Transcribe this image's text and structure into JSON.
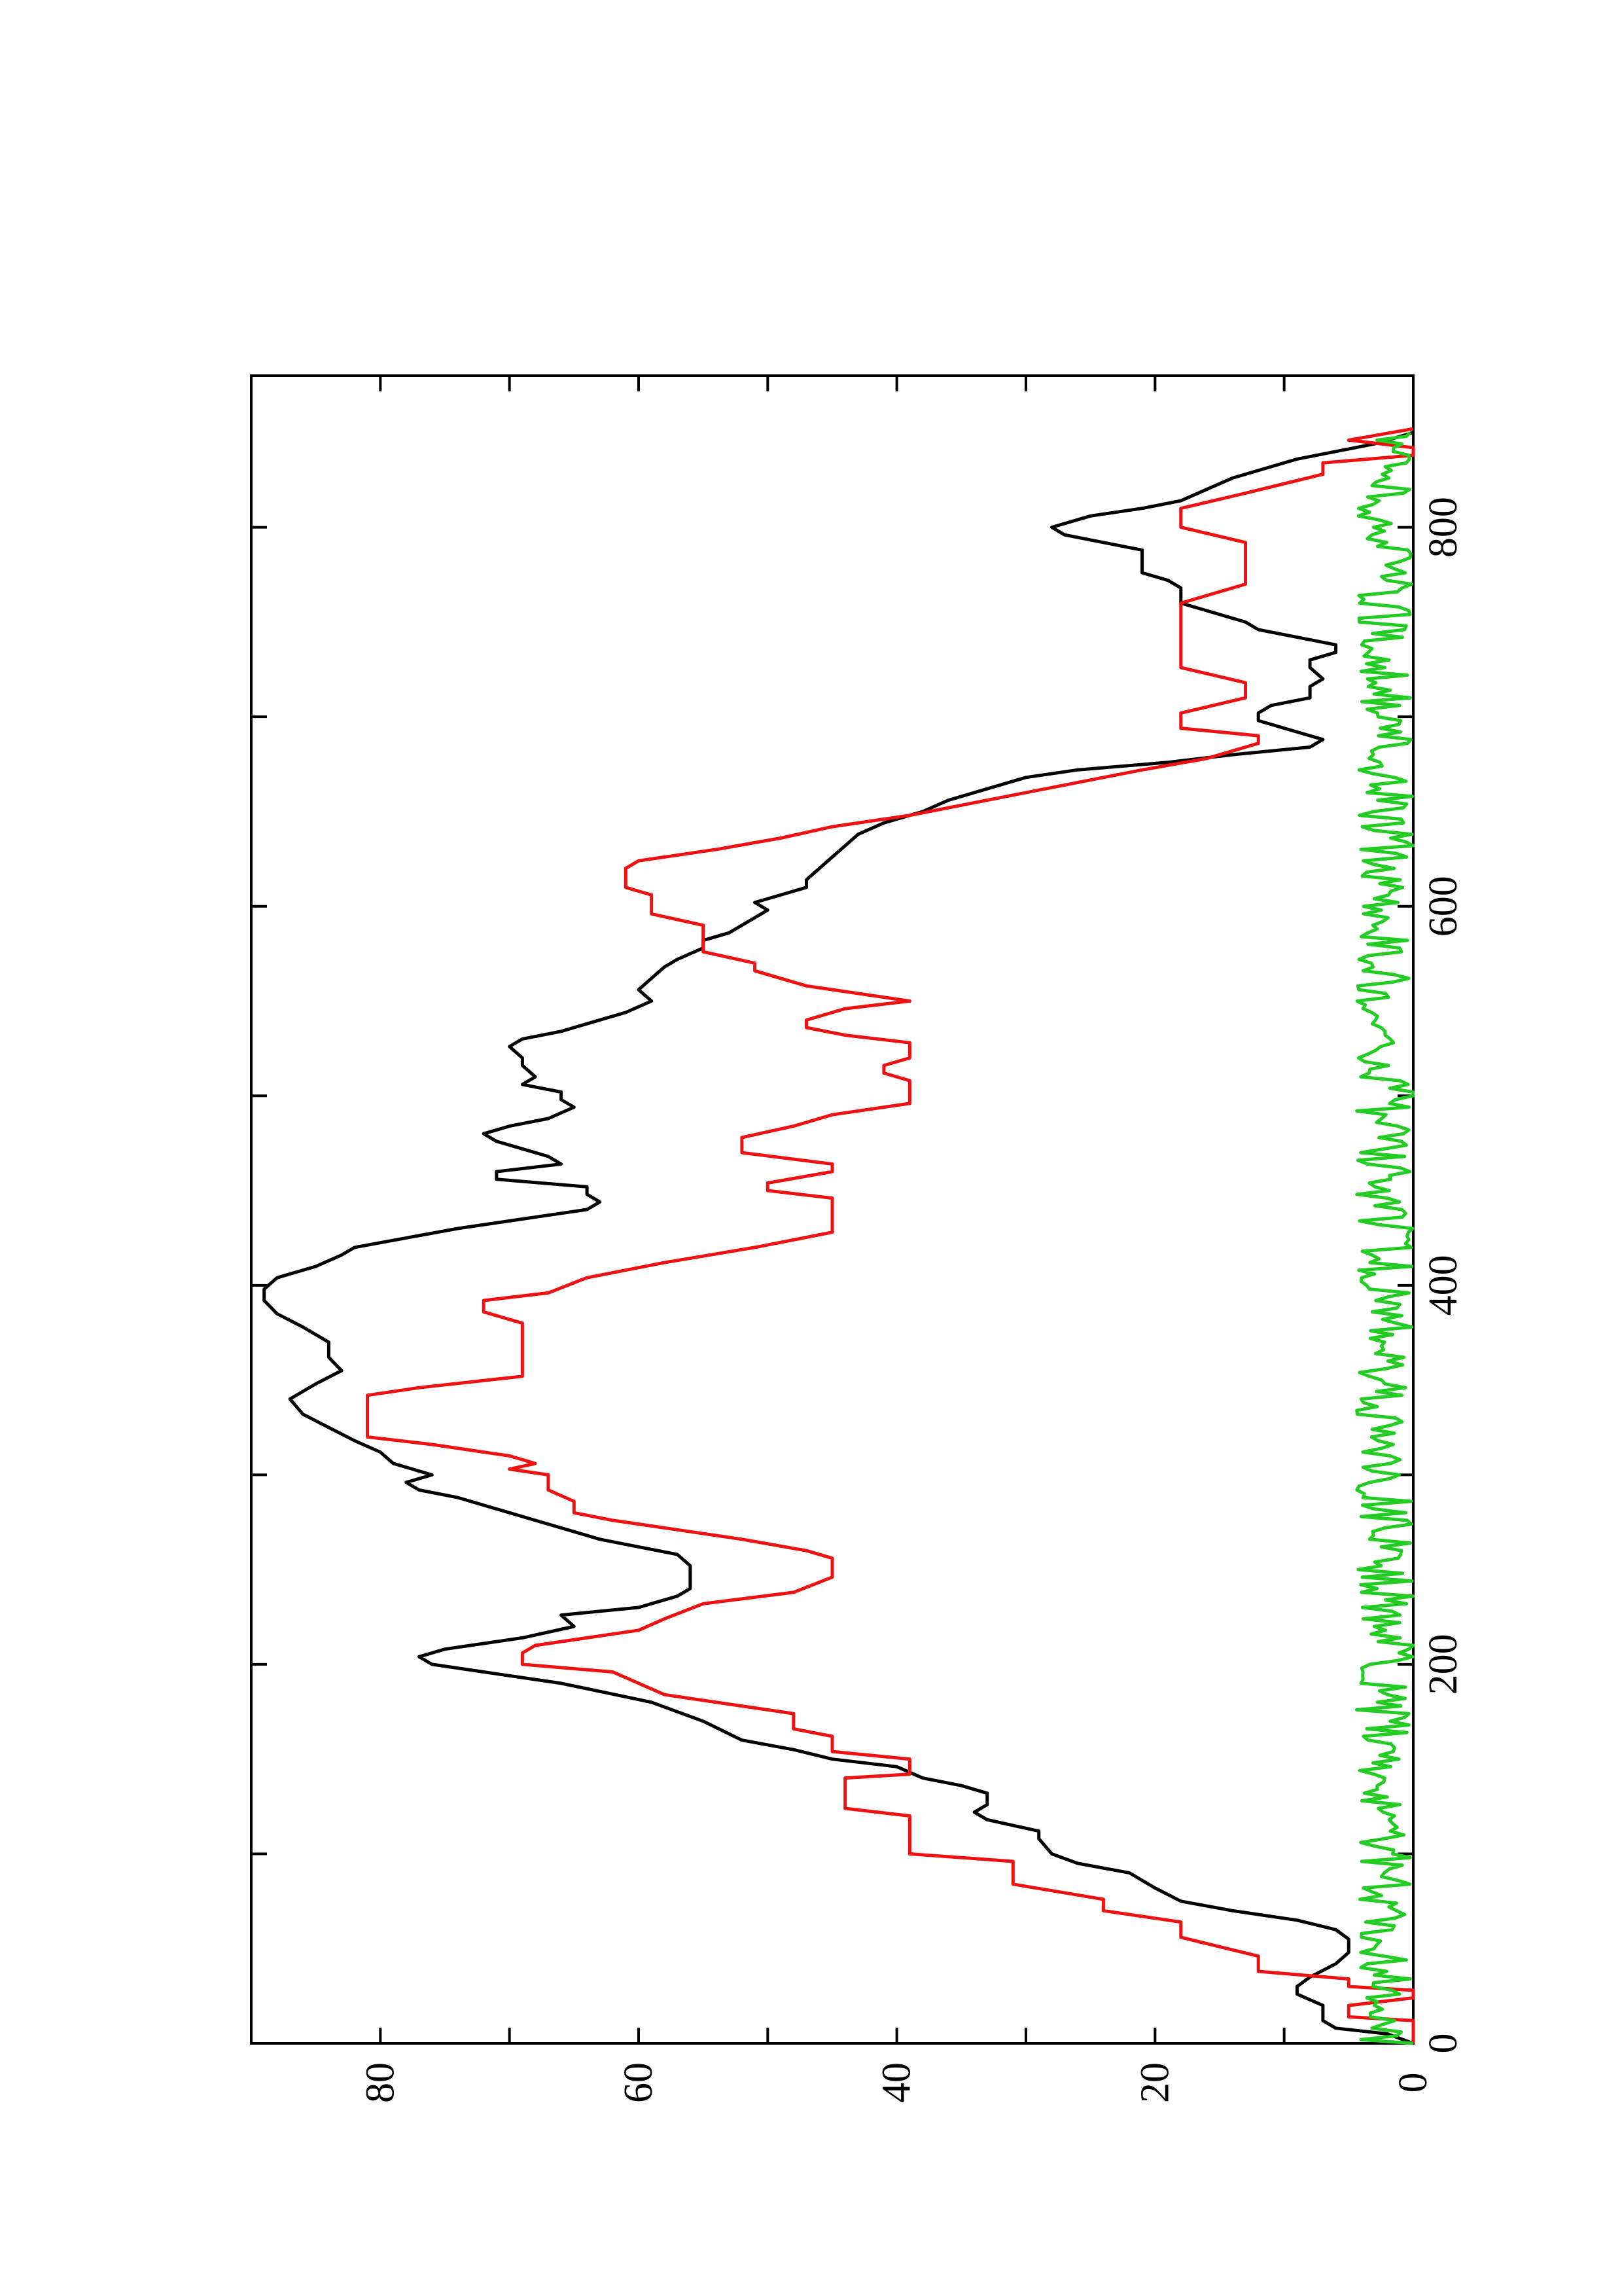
{
  "chart_data": {
    "type": "line",
    "title": "",
    "xlabel": "",
    "ylabel": "",
    "orientation_note": "page rotated 90 degrees counter-clockwise",
    "xlim": [
      0,
      880
    ],
    "ylim": [
      0,
      90
    ],
    "x_ticks": [
      0,
      200,
      400,
      600,
      800
    ],
    "x_tick_labels": [
      "0",
      "200",
      "400",
      "600",
      "800"
    ],
    "x_minor_ticks": [
      100,
      300,
      500,
      700
    ],
    "y_ticks": [
      0,
      20,
      40,
      60,
      80
    ],
    "y_tick_labels": [
      "0",
      "20",
      "40",
      "60",
      "80"
    ],
    "y_minor_ticks": [
      10,
      30,
      50,
      70
    ],
    "grid": false,
    "series": [
      {
        "color": "#000000",
        "points": [
          [
            0,
            0
          ],
          [
            5,
            2
          ],
          [
            8,
            6
          ],
          [
            12,
            7
          ],
          [
            20,
            7
          ],
          [
            26,
            9
          ],
          [
            30,
            9
          ],
          [
            35,
            8
          ],
          [
            42,
            6
          ],
          [
            48,
            5
          ],
          [
            55,
            5
          ],
          [
            60,
            6
          ],
          [
            65,
            9
          ],
          [
            70,
            14
          ],
          [
            75,
            18
          ],
          [
            82,
            20
          ],
          [
            90,
            22
          ],
          [
            95,
            26
          ],
          [
            100,
            28
          ],
          [
            108,
            29
          ],
          [
            112,
            29
          ],
          [
            118,
            33
          ],
          [
            122,
            34
          ],
          [
            126,
            33
          ],
          [
            132,
            33
          ],
          [
            136,
            35
          ],
          [
            140,
            38
          ],
          [
            146,
            40
          ],
          [
            150,
            45
          ],
          [
            155,
            48
          ],
          [
            160,
            52
          ],
          [
            170,
            55
          ],
          [
            180,
            59
          ],
          [
            190,
            66
          ],
          [
            196,
            72
          ],
          [
            200,
            76
          ],
          [
            204,
            77
          ],
          [
            208,
            75
          ],
          [
            214,
            69
          ],
          [
            220,
            65
          ],
          [
            226,
            66
          ],
          [
            230,
            60
          ],
          [
            236,
            57
          ],
          [
            240,
            56
          ],
          [
            246,
            56
          ],
          [
            252,
            56
          ],
          [
            258,
            57
          ],
          [
            262,
            60
          ],
          [
            266,
            63
          ],
          [
            270,
            65
          ],
          [
            276,
            68
          ],
          [
            282,
            71
          ],
          [
            288,
            74
          ],
          [
            292,
            77
          ],
          [
            296,
            78
          ],
          [
            300,
            76
          ],
          [
            306,
            79
          ],
          [
            312,
            80
          ],
          [
            318,
            82
          ],
          [
            325,
            84
          ],
          [
            332,
            86
          ],
          [
            340,
            87
          ],
          [
            348,
            85
          ],
          [
            355,
            83
          ],
          [
            362,
            84
          ],
          [
            370,
            84
          ],
          [
            378,
            86
          ],
          [
            385,
            88
          ],
          [
            392,
            89
          ],
          [
            398,
            89
          ],
          [
            404,
            88
          ],
          [
            410,
            85
          ],
          [
            416,
            83
          ],
          [
            420,
            82
          ],
          [
            425,
            78
          ],
          [
            430,
            74
          ],
          [
            434,
            70
          ],
          [
            438,
            66
          ],
          [
            440,
            64
          ],
          [
            444,
            63
          ],
          [
            448,
            64
          ],
          [
            452,
            64
          ],
          [
            456,
            71
          ],
          [
            460,
            71
          ],
          [
            464,
            66
          ],
          [
            468,
            67
          ],
          [
            472,
            69
          ],
          [
            476,
            71
          ],
          [
            480,
            72
          ],
          [
            484,
            70
          ],
          [
            488,
            67
          ],
          [
            494,
            65
          ],
          [
            498,
            66
          ],
          [
            502,
            66
          ],
          [
            506,
            69
          ],
          [
            510,
            68
          ],
          [
            516,
            69
          ],
          [
            520,
            69
          ],
          [
            526,
            70
          ],
          [
            530,
            69
          ],
          [
            534,
            66
          ],
          [
            538,
            64
          ],
          [
            544,
            61
          ],
          [
            550,
            59
          ],
          [
            556,
            60
          ],
          [
            562,
            59
          ],
          [
            568,
            58
          ],
          [
            572,
            57
          ],
          [
            578,
            55
          ],
          [
            582,
            55
          ],
          [
            586,
            53
          ],
          [
            590,
            52
          ],
          [
            594,
            51
          ],
          [
            598,
            50
          ],
          [
            602,
            51
          ],
          [
            606,
            49
          ],
          [
            610,
            47
          ],
          [
            614,
            47
          ],
          [
            620,
            46
          ],
          [
            626,
            45
          ],
          [
            632,
            44
          ],
          [
            638,
            43
          ],
          [
            644,
            41
          ],
          [
            650,
            38
          ],
          [
            656,
            36
          ],
          [
            662,
            33
          ],
          [
            668,
            30
          ],
          [
            672,
            26
          ],
          [
            676,
            19
          ],
          [
            680,
            14
          ],
          [
            684,
            8
          ],
          [
            688,
            7
          ],
          [
            694,
            10
          ],
          [
            698,
            12
          ],
          [
            702,
            12
          ],
          [
            706,
            11
          ],
          [
            710,
            8
          ],
          [
            716,
            8
          ],
          [
            720,
            7
          ],
          [
            726,
            8
          ],
          [
            730,
            8
          ],
          [
            734,
            6
          ],
          [
            738,
            6
          ],
          [
            742,
            9
          ],
          [
            746,
            12
          ],
          [
            750,
            13
          ],
          [
            756,
            16
          ],
          [
            760,
            18
          ],
          [
            764,
            18
          ],
          [
            768,
            18
          ],
          [
            772,
            19
          ],
          [
            776,
            21
          ],
          [
            780,
            21
          ],
          [
            784,
            21
          ],
          [
            788,
            21
          ],
          [
            792,
            24
          ],
          [
            796,
            27
          ],
          [
            800,
            28
          ],
          [
            806,
            25
          ],
          [
            810,
            21
          ],
          [
            814,
            18
          ],
          [
            820,
            16
          ],
          [
            826,
            14
          ],
          [
            832,
            11
          ],
          [
            836,
            9
          ],
          [
            840,
            6
          ],
          [
            844,
            3
          ],
          [
            848,
            1
          ],
          [
            850,
            0
          ]
        ]
      },
      {
        "color": "#ee1111",
        "points": [
          [
            0,
            0
          ],
          [
            5,
            0
          ],
          [
            12,
            0
          ],
          [
            14,
            5
          ],
          [
            20,
            5
          ],
          [
            24,
            0
          ],
          [
            28,
            0
          ],
          [
            30,
            5
          ],
          [
            34,
            5
          ],
          [
            38,
            12
          ],
          [
            46,
            12
          ],
          [
            56,
            18
          ],
          [
            64,
            18
          ],
          [
            70,
            24
          ],
          [
            76,
            24
          ],
          [
            84,
            31
          ],
          [
            96,
            31
          ],
          [
            100,
            39
          ],
          [
            120,
            39
          ],
          [
            124,
            44
          ],
          [
            140,
            44
          ],
          [
            142,
            39
          ],
          [
            150,
            39
          ],
          [
            154,
            45
          ],
          [
            162,
            45
          ],
          [
            166,
            48
          ],
          [
            174,
            48
          ],
          [
            178,
            52
          ],
          [
            184,
            58
          ],
          [
            196,
            62
          ],
          [
            200,
            69
          ],
          [
            206,
            69
          ],
          [
            210,
            68
          ],
          [
            218,
            60
          ],
          [
            224,
            58
          ],
          [
            232,
            55
          ],
          [
            238,
            48
          ],
          [
            246,
            45
          ],
          [
            256,
            45
          ],
          [
            260,
            47
          ],
          [
            266,
            52
          ],
          [
            272,
            58
          ],
          [
            276,
            62
          ],
          [
            280,
            65
          ],
          [
            286,
            65
          ],
          [
            292,
            67
          ],
          [
            300,
            67
          ],
          [
            303,
            70
          ],
          [
            306,
            68
          ],
          [
            310,
            70
          ],
          [
            316,
            76
          ],
          [
            320,
            81
          ],
          [
            342,
            81
          ],
          [
            346,
            77
          ],
          [
            352,
            69
          ],
          [
            380,
            69
          ],
          [
            386,
            72
          ],
          [
            392,
            72
          ],
          [
            396,
            67
          ],
          [
            404,
            64
          ],
          [
            412,
            58
          ],
          [
            420,
            51
          ],
          [
            428,
            45
          ],
          [
            446,
            45
          ],
          [
            450,
            50
          ],
          [
            454,
            50
          ],
          [
            460,
            45
          ],
          [
            464,
            45
          ],
          [
            470,
            52
          ],
          [
            478,
            52
          ],
          [
            484,
            48
          ],
          [
            490,
            45
          ],
          [
            496,
            39
          ],
          [
            508,
            39
          ],
          [
            512,
            41
          ],
          [
            516,
            41
          ],
          [
            520,
            39
          ],
          [
            528,
            39
          ],
          [
            532,
            44
          ],
          [
            536,
            47
          ],
          [
            540,
            47
          ],
          [
            546,
            44
          ],
          [
            550,
            39
          ],
          [
            554,
            43
          ],
          [
            558,
            47
          ],
          [
            562,
            49
          ],
          [
            566,
            51
          ],
          [
            570,
            51
          ],
          [
            576,
            55
          ],
          [
            590,
            55
          ],
          [
            596,
            59
          ],
          [
            606,
            59
          ],
          [
            610,
            61
          ],
          [
            620,
            61
          ],
          [
            624,
            60
          ],
          [
            630,
            54
          ],
          [
            636,
            49
          ],
          [
            642,
            45
          ],
          [
            648,
            39
          ],
          [
            656,
            33
          ],
          [
            664,
            27
          ],
          [
            672,
            21
          ],
          [
            678,
            16
          ],
          [
            686,
            12
          ],
          [
            690,
            12
          ],
          [
            694,
            18
          ],
          [
            702,
            18
          ],
          [
            710,
            13
          ],
          [
            718,
            13
          ],
          [
            726,
            18
          ],
          [
            760,
            18
          ],
          [
            770,
            13
          ],
          [
            792,
            13
          ],
          [
            800,
            18
          ],
          [
            810,
            18
          ],
          [
            818,
            13
          ],
          [
            828,
            7
          ],
          [
            834,
            7
          ],
          [
            838,
            0
          ],
          [
            842,
            0
          ],
          [
            846,
            5
          ],
          [
            852,
            0
          ]
        ]
      },
      {
        "color": "#22cc22",
        "noise_amplitude": 2.2,
        "xlim": [
          0,
          850
        ]
      }
    ]
  }
}
